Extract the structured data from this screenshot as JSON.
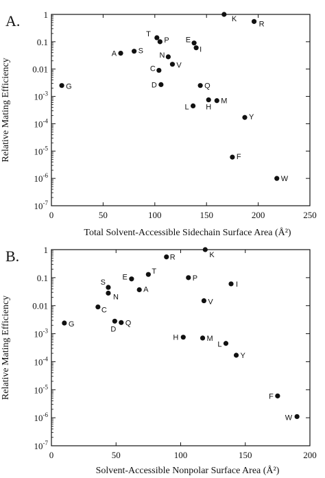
{
  "chart_data": [
    {
      "type": "scatter",
      "panel": "A.",
      "xlabel": "Total Solvent-Accessible Sidechain Surface Area (Å²)",
      "ylabel": "Relative Mating Efficiency",
      "xlim": [
        0,
        250
      ],
      "ylim_log10": [
        -7,
        0
      ],
      "yscale": "log",
      "xticks": [
        0,
        50,
        100,
        150,
        200,
        250
      ],
      "yticks": [
        "1",
        "0.1",
        "0.01",
        "10-3",
        "10-4",
        "10-5",
        "10-6",
        "10-7"
      ],
      "points": [
        {
          "label": "K",
          "x": 167,
          "y": 1.0
        },
        {
          "label": "R",
          "x": 196,
          "y": 0.55
        },
        {
          "label": "T",
          "x": 102,
          "y": 0.14
        },
        {
          "label": "P",
          "x": 105,
          "y": 0.1
        },
        {
          "label": "E",
          "x": 138,
          "y": 0.09
        },
        {
          "label": "I",
          "x": 140,
          "y": 0.06
        },
        {
          "label": "A",
          "x": 67,
          "y": 0.038
        },
        {
          "label": "S",
          "x": 80,
          "y": 0.045
        },
        {
          "label": "N",
          "x": 113,
          "y": 0.028
        },
        {
          "label": "V",
          "x": 117,
          "y": 0.015
        },
        {
          "label": "C",
          "x": 104,
          "y": 0.009
        },
        {
          "label": "D",
          "x": 106,
          "y": 0.0027
        },
        {
          "label": "Q",
          "x": 144,
          "y": 0.0025
        },
        {
          "label": "G",
          "x": 10,
          "y": 0.0025
        },
        {
          "label": "M",
          "x": 160,
          "y": 0.0007
        },
        {
          "label": "H",
          "x": 152,
          "y": 0.00075
        },
        {
          "label": "L",
          "x": 137,
          "y": 0.00045
        },
        {
          "label": "Y",
          "x": 187,
          "y": 0.00017
        },
        {
          "label": "F",
          "x": 175,
          "y": 6e-06
        },
        {
          "label": "W",
          "x": 218,
          "y": 1e-06
        }
      ]
    },
    {
      "type": "scatter",
      "panel": "B.",
      "xlabel": "Solvent-Accessible Nonpolar Surface Area (Å²)",
      "ylabel": "Relative Mating Efficiency",
      "xlim": [
        0,
        200
      ],
      "ylim_log10": [
        -7,
        0
      ],
      "yscale": "log",
      "xticks": [
        0,
        50,
        100,
        150,
        200
      ],
      "yticks": [
        "1",
        "0.1",
        "0.01",
        "10-3",
        "10-4",
        "10-5",
        "10-6",
        "10-7"
      ],
      "points": [
        {
          "label": "K",
          "x": 119,
          "y": 1.0
        },
        {
          "label": "R",
          "x": 89,
          "y": 0.55
        },
        {
          "label": "T",
          "x": 75,
          "y": 0.13
        },
        {
          "label": "E",
          "x": 62,
          "y": 0.09
        },
        {
          "label": "P",
          "x": 106,
          "y": 0.1
        },
        {
          "label": "S",
          "x": 44,
          "y": 0.045
        },
        {
          "label": "A",
          "x": 68,
          "y": 0.037
        },
        {
          "label": "N",
          "x": 44,
          "y": 0.028
        },
        {
          "label": "I",
          "x": 139,
          "y": 0.06
        },
        {
          "label": "V",
          "x": 118,
          "y": 0.015
        },
        {
          "label": "C",
          "x": 36,
          "y": 0.009
        },
        {
          "label": "D",
          "x": 49,
          "y": 0.0028
        },
        {
          "label": "Q",
          "x": 54,
          "y": 0.0025
        },
        {
          "label": "G",
          "x": 10,
          "y": 0.0024
        },
        {
          "label": "H",
          "x": 102,
          "y": 0.00075
        },
        {
          "label": "M",
          "x": 117,
          "y": 0.0007
        },
        {
          "label": "L",
          "x": 135,
          "y": 0.00045
        },
        {
          "label": "Y",
          "x": 143,
          "y": 0.00017
        },
        {
          "label": "F",
          "x": 175,
          "y": 6e-06
        },
        {
          "label": "W",
          "x": 190,
          "y": 1.1e-06
        }
      ]
    }
  ]
}
